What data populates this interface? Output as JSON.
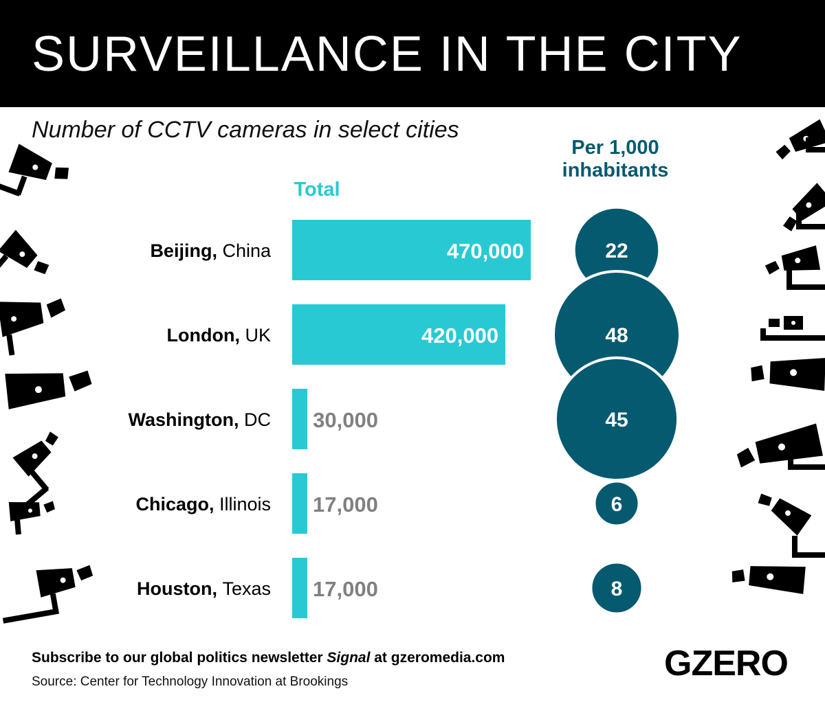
{
  "header": {
    "title": "SURVEILLANCE IN THE CITY"
  },
  "subtitle": "Number of CCTV cameras in select cities",
  "columns": {
    "total": "Total",
    "per_line1": "Per 1,000",
    "per_line2": "inhabitants"
  },
  "colors": {
    "bar": "#29c9d4",
    "circle": "#055a70",
    "header_bg": "#000000",
    "muted_label": "#808080",
    "per_head": "#055a70"
  },
  "chart_data": {
    "type": "bar",
    "title": "Number of CCTV cameras in select cities",
    "categories": [
      "Beijing, China",
      "London, UK",
      "Washington, DC",
      "Chicago, Illinois",
      "Houston, Texas"
    ],
    "series": [
      {
        "name": "Total",
        "values": [
          470000,
          420000,
          30000,
          17000,
          17000
        ]
      },
      {
        "name": "Per 1,000 inhabitants",
        "values": [
          22,
          48,
          45,
          6,
          8
        ]
      }
    ],
    "value_labels": [
      "470,000",
      "420,000",
      "30,000",
      "17,000",
      "17,000"
    ],
    "city_bold": [
      "Beijing,",
      "London,",
      "Washington,",
      "Chicago,",
      "Houston,"
    ],
    "city_rest": [
      "China",
      "UK",
      "DC",
      "Illinois",
      "Texas"
    ],
    "per_labels": [
      "22",
      "48",
      "45",
      "6",
      "8"
    ]
  },
  "footer": {
    "cta_pre": "Subscribe to our global politics newsletter ",
    "cta_italic": "Signal",
    "cta_post": " at gzeromedia.com",
    "source": "Source: Center for Technology Innovation at Brookings",
    "logo": "GZERO"
  },
  "decor": {
    "left_icon": "cctv-camera-icon",
    "right_icon": "cctv-camera-icon"
  }
}
